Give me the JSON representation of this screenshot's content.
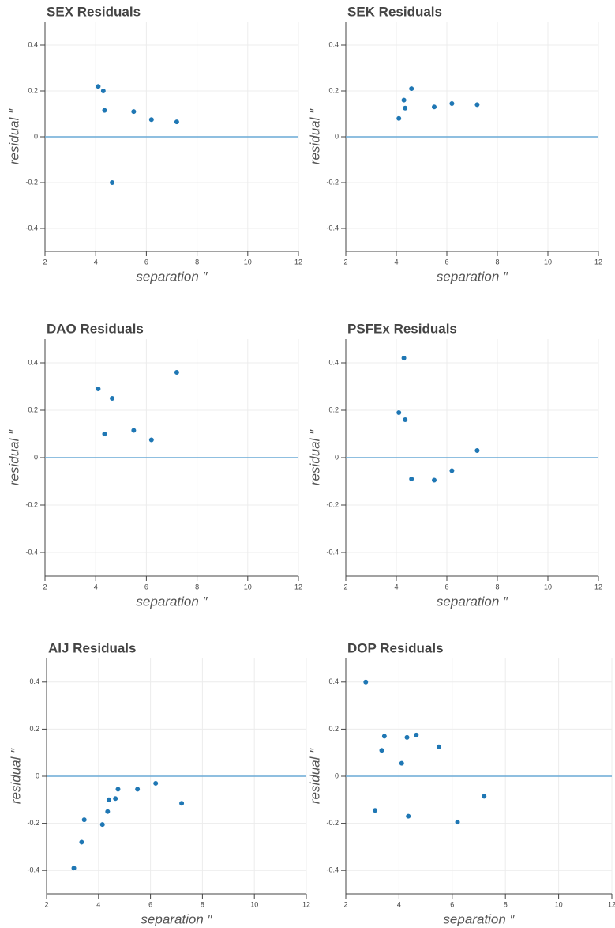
{
  "chart_data": [
    {
      "type": "scatter",
      "title": "SEX Residuals",
      "x_label": "separation ″",
      "y_label": "residual ″",
      "series": [
        {
          "color": "#1f77b4",
          "x": [
            4.1,
            4.3,
            4.35,
            5.5,
            6.2,
            7.2,
            4.65
          ],
          "values": [
            0.22,
            0.2,
            0.115,
            0.11,
            0.075,
            0.065,
            -0.2
          ]
        }
      ],
      "xlim": [
        2,
        12
      ],
      "xticks": [
        2,
        4,
        6,
        8,
        10,
        12
      ],
      "ylim": [
        -0.5,
        0.5
      ],
      "yticks": [
        -0.4,
        -0.2,
        0,
        0.2,
        0.4
      ],
      "grid": true,
      "reference_line": 0,
      "reference_color": "#6aaad6"
    },
    {
      "type": "scatter",
      "title": "SEK Residuals",
      "x_label": "separation ″",
      "y_label": "residual ″",
      "series": [
        {
          "color": "#1f77b4",
          "x": [
            4.1,
            4.3,
            4.35,
            4.6,
            5.5,
            6.2,
            7.2
          ],
          "values": [
            0.08,
            0.16,
            0.125,
            0.21,
            0.13,
            0.145,
            0.14
          ]
        }
      ],
      "xlim": [
        2,
        12
      ],
      "xticks": [
        2,
        4,
        6,
        8,
        10,
        12
      ],
      "ylim": [
        -0.5,
        0.5
      ],
      "yticks": [
        -0.4,
        -0.2,
        0,
        0.2,
        0.4
      ],
      "grid": true,
      "reference_line": 0,
      "reference_color": "#6aaad6"
    },
    {
      "type": "scatter",
      "title": "DAO Residuals",
      "x_label": "separation ″",
      "y_label": "residual ″",
      "series": [
        {
          "color": "#1f77b4",
          "x": [
            4.1,
            4.35,
            4.65,
            5.5,
            6.2,
            7.2
          ],
          "values": [
            0.29,
            0.1,
            0.25,
            0.115,
            0.075,
            0.36
          ]
        }
      ],
      "xlim": [
        2,
        12
      ],
      "xticks": [
        2,
        4,
        6,
        8,
        10,
        12
      ],
      "ylim": [
        -0.5,
        0.5
      ],
      "yticks": [
        -0.4,
        -0.2,
        0,
        0.2,
        0.4
      ],
      "grid": true,
      "reference_line": 0,
      "reference_color": "#6aaad6"
    },
    {
      "type": "scatter",
      "title": "PSFEx Residuals",
      "x_label": "separation ″",
      "y_label": "residual ″",
      "series": [
        {
          "color": "#1f77b4",
          "x": [
            4.1,
            4.3,
            4.35,
            4.6,
            5.5,
            6.2,
            7.2
          ],
          "values": [
            0.19,
            0.42,
            0.16,
            -0.09,
            -0.095,
            -0.055,
            0.03
          ]
        }
      ],
      "xlim": [
        2,
        12
      ],
      "xticks": [
        2,
        4,
        6,
        8,
        10,
        12
      ],
      "ylim": [
        -0.5,
        0.5
      ],
      "yticks": [
        -0.4,
        -0.2,
        0,
        0.2,
        0.4
      ],
      "grid": true,
      "reference_line": 0,
      "reference_color": "#6aaad6"
    },
    {
      "type": "scatter",
      "title": "AIJ Residuals",
      "x_label": "separation ″",
      "y_label": "residual ″",
      "series": [
        {
          "color": "#1f77b4",
          "x": [
            3.05,
            3.35,
            3.45,
            4.15,
            4.35,
            4.4,
            4.65,
            4.75,
            5.5,
            6.2,
            7.2
          ],
          "values": [
            -0.39,
            -0.28,
            -0.185,
            -0.205,
            -0.15,
            -0.1,
            -0.095,
            -0.055,
            -0.055,
            -0.03,
            -0.115
          ]
        }
      ],
      "xlim": [
        2,
        12
      ],
      "xticks": [
        2,
        4,
        6,
        8,
        10,
        12
      ],
      "ylim": [
        -0.5,
        0.5
      ],
      "yticks": [
        -0.4,
        -0.2,
        0,
        0.2,
        0.4
      ],
      "grid": true,
      "reference_line": 0,
      "reference_color": "#6aaad6"
    },
    {
      "type": "scatter",
      "title": "DOP Residuals",
      "x_label": "separation ″",
      "y_label": "residual ″",
      "series": [
        {
          "color": "#1f77b4",
          "x": [
            2.75,
            3.1,
            3.35,
            3.45,
            4.1,
            4.3,
            4.35,
            4.65,
            5.5,
            6.2,
            7.2
          ],
          "values": [
            0.4,
            -0.145,
            0.11,
            0.17,
            0.055,
            0.165,
            -0.17,
            0.175,
            0.125,
            -0.195,
            -0.085
          ]
        }
      ],
      "xlim": [
        2,
        12
      ],
      "xticks": [
        2,
        4,
        6,
        8,
        10,
        12
      ],
      "ylim": [
        -0.5,
        0.5
      ],
      "yticks": [
        -0.4,
        -0.2,
        0,
        0.2,
        0.4
      ],
      "grid": true,
      "reference_line": 0,
      "reference_color": "#6aaad6"
    }
  ]
}
